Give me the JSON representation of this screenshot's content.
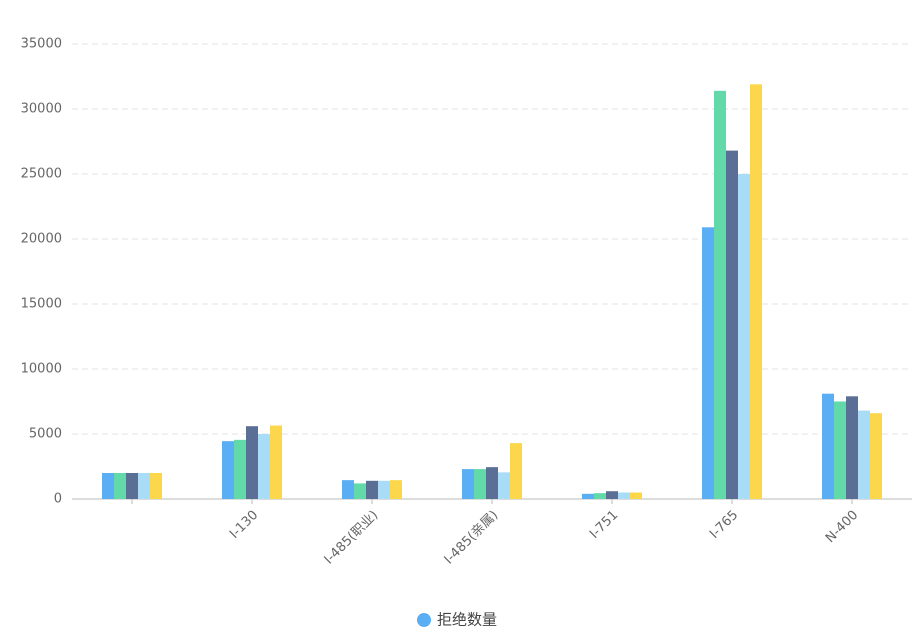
{
  "chart_data": {
    "type": "bar",
    "categories": [
      null,
      "I-130",
      "I-485(职业)",
      "I-485(亲属)",
      "I-751",
      "I-765",
      "N-400"
    ],
    "series": [
      {
        "name": "拒绝数量",
        "color": "#5aaef3",
        "values": [
          2000,
          4450,
          1450,
          2300,
          400,
          20900,
          8100
        ]
      },
      {
        "color": "#62d9a8",
        "values": [
          2000,
          4550,
          1200,
          2300,
          450,
          31400,
          7500
        ]
      },
      {
        "color": "#5b6f96",
        "values": [
          2000,
          5600,
          1400,
          2450,
          600,
          26800,
          7900
        ]
      },
      {
        "color": "#a8dcf7",
        "values": [
          2000,
          5000,
          1400,
          2050,
          500,
          25000,
          6800
        ]
      },
      {
        "color": "#fdd74b",
        "values": [
          2000,
          5650,
          1450,
          4300,
          500,
          31900,
          6600
        ]
      }
    ],
    "ylim": [
      0,
      35000
    ],
    "yticks": [
      0,
      5000,
      10000,
      15000,
      20000,
      25000,
      30000,
      35000
    ],
    "grid": true
  }
}
